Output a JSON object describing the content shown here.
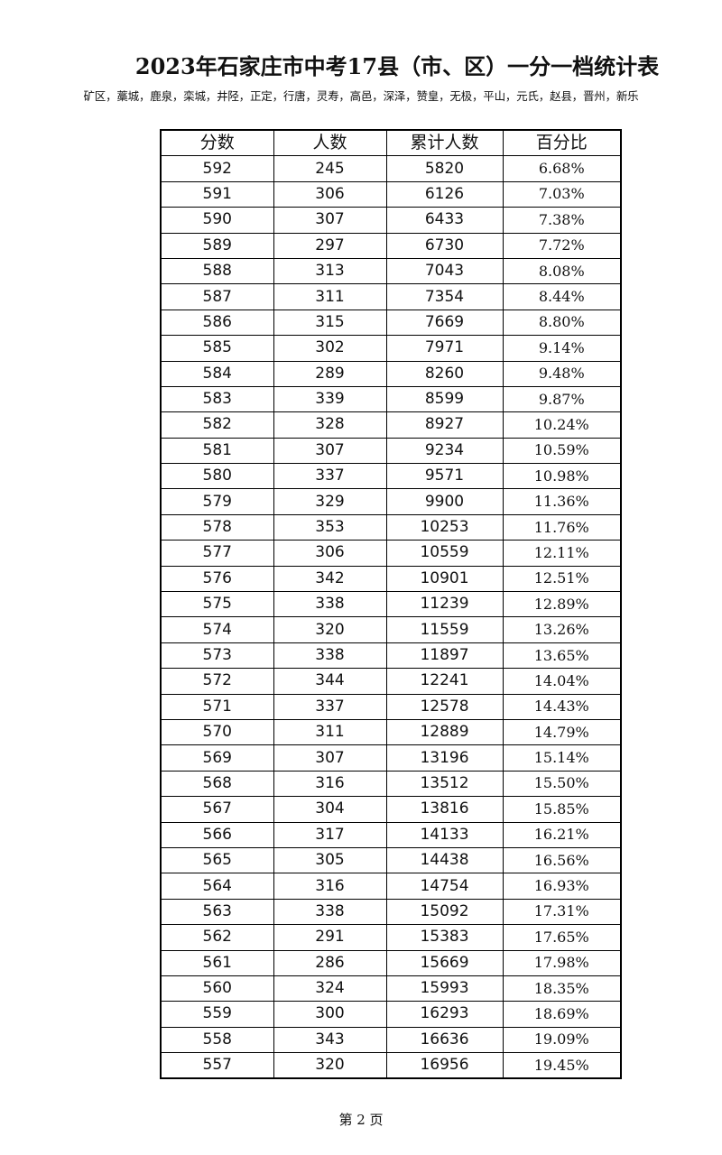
{
  "header": {
    "title": "2023年石家庄市中考17县（市、区）一分一档统计表",
    "subtitle": "矿区，藁城，鹿泉，栾城，井陉，正定，行唐，灵寿，高邑，深泽，赞皇，无极，平山，元氏，赵县，晋州，新乐"
  },
  "table": {
    "columns": [
      "分数",
      "人数",
      "累计人数",
      "百分比"
    ],
    "rows": [
      [
        "592",
        "245",
        "5820",
        "6.68%"
      ],
      [
        "591",
        "306",
        "6126",
        "7.03%"
      ],
      [
        "590",
        "307",
        "6433",
        "7.38%"
      ],
      [
        "589",
        "297",
        "6730",
        "7.72%"
      ],
      [
        "588",
        "313",
        "7043",
        "8.08%"
      ],
      [
        "587",
        "311",
        "7354",
        "8.44%"
      ],
      [
        "586",
        "315",
        "7669",
        "8.80%"
      ],
      [
        "585",
        "302",
        "7971",
        "9.14%"
      ],
      [
        "584",
        "289",
        "8260",
        "9.48%"
      ],
      [
        "583",
        "339",
        "8599",
        "9.87%"
      ],
      [
        "582",
        "328",
        "8927",
        "10.24%"
      ],
      [
        "581",
        "307",
        "9234",
        "10.59%"
      ],
      [
        "580",
        "337",
        "9571",
        "10.98%"
      ],
      [
        "579",
        "329",
        "9900",
        "11.36%"
      ],
      [
        "578",
        "353",
        "10253",
        "11.76%"
      ],
      [
        "577",
        "306",
        "10559",
        "12.11%"
      ],
      [
        "576",
        "342",
        "10901",
        "12.51%"
      ],
      [
        "575",
        "338",
        "11239",
        "12.89%"
      ],
      [
        "574",
        "320",
        "11559",
        "13.26%"
      ],
      [
        "573",
        "338",
        "11897",
        "13.65%"
      ],
      [
        "572",
        "344",
        "12241",
        "14.04%"
      ],
      [
        "571",
        "337",
        "12578",
        "14.43%"
      ],
      [
        "570",
        "311",
        "12889",
        "14.79%"
      ],
      [
        "569",
        "307",
        "13196",
        "15.14%"
      ],
      [
        "568",
        "316",
        "13512",
        "15.50%"
      ],
      [
        "567",
        "304",
        "13816",
        "15.85%"
      ],
      [
        "566",
        "317",
        "14133",
        "16.21%"
      ],
      [
        "565",
        "305",
        "14438",
        "16.56%"
      ],
      [
        "564",
        "316",
        "14754",
        "16.93%"
      ],
      [
        "563",
        "338",
        "15092",
        "17.31%"
      ],
      [
        "562",
        "291",
        "15383",
        "17.65%"
      ],
      [
        "561",
        "286",
        "15669",
        "17.98%"
      ],
      [
        "560",
        "324",
        "15993",
        "18.35%"
      ],
      [
        "559",
        "300",
        "16293",
        "18.69%"
      ],
      [
        "558",
        "343",
        "16636",
        "19.09%"
      ],
      [
        "557",
        "320",
        "16956",
        "19.45%"
      ]
    ]
  },
  "footer": {
    "page": "第 2 页"
  }
}
